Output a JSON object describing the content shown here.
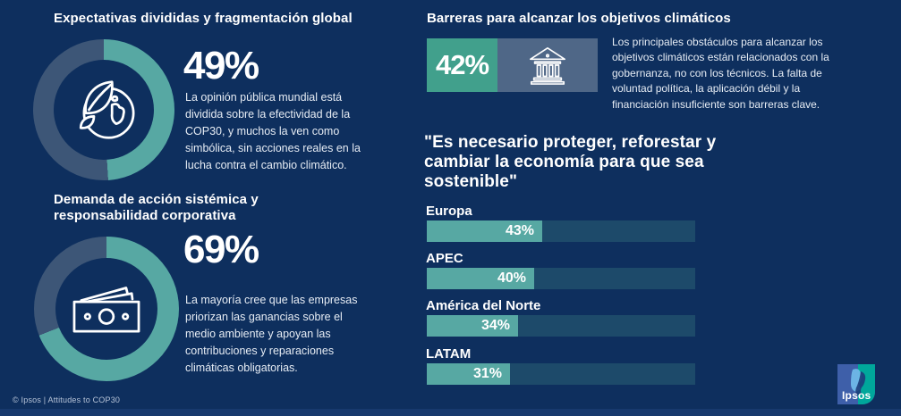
{
  "colors": {
    "background": "#0e2f5e",
    "teal": "#57a8a3",
    "slate": "#3d5677",
    "badge_teal": "#41a08c",
    "tile_slate": "#4f6787",
    "bar_track": "#1d4a6a"
  },
  "sections": {
    "expectations": {
      "title": "Expectativas divididas y fragmentación global",
      "stat": "49%",
      "description": "La opinión pública mundial está dividida sobre la efectividad de la COP30, y muchos la ven como simbólica, sin acciones reales en la lucha contra el cambio climático.",
      "icon": "globe-leaf-icon"
    },
    "corporate": {
      "title": "Demanda de acción sistémica y responsabilidad corporativa",
      "stat": "69%",
      "description": "La mayoría cree que las empresas priorizan las ganancias sobre el medio ambiente y apoyan las contribuciones y reparaciones climáticas obligatorias.",
      "icon": "banknote-icon"
    },
    "barriers": {
      "title": "Barreras para alcanzar los objetivos climáticos",
      "stat": "42%",
      "description": "Los principales obstáculos para alcanzar los objetivos climáticos están relacionados con la gobernanza, no con los técnicos. La falta de voluntad política, la aplicación débil y la financiación insuficiente son barreras clave.",
      "icon": "bank-icon"
    },
    "quote": "\"Es necesario proteger, reforestar y cambiar la economía para que sea sostenible\""
  },
  "chart_data": [
    {
      "type": "pie",
      "variant": "donut",
      "title": "Expectativas divididas y fragmentación global",
      "value": 49,
      "values": [
        49,
        51
      ],
      "unit": "%",
      "colors": [
        "#57a8a3",
        "#3d5677"
      ],
      "center_icon": "globe-leaf-icon"
    },
    {
      "type": "pie",
      "variant": "donut",
      "title": "Demanda de acción sistémica y responsabilidad corporativa",
      "value": 69,
      "values": [
        69,
        31
      ],
      "unit": "%",
      "colors": [
        "#57a8a3",
        "#3d5677"
      ],
      "center_icon": "banknote-icon"
    },
    {
      "type": "bar",
      "orientation": "horizontal",
      "title": "\"Es necesario proteger, reforestar y cambiar la economía para que sea sostenible\"",
      "xlim": [
        0,
        100
      ],
      "unit": "%",
      "bars": [
        {
          "label": "Europa",
          "value": 43,
          "display": "43%"
        },
        {
          "label": "APEC",
          "value": 40,
          "display": "40%"
        },
        {
          "label": "América del Norte",
          "value": 34,
          "display": "34%"
        },
        {
          "label": "LATAM",
          "value": 31,
          "display": "31%"
        }
      ]
    }
  ],
  "footer": {
    "note": "© Ipsos | Attitudes to COP30",
    "logo_text": "Ipsos"
  }
}
